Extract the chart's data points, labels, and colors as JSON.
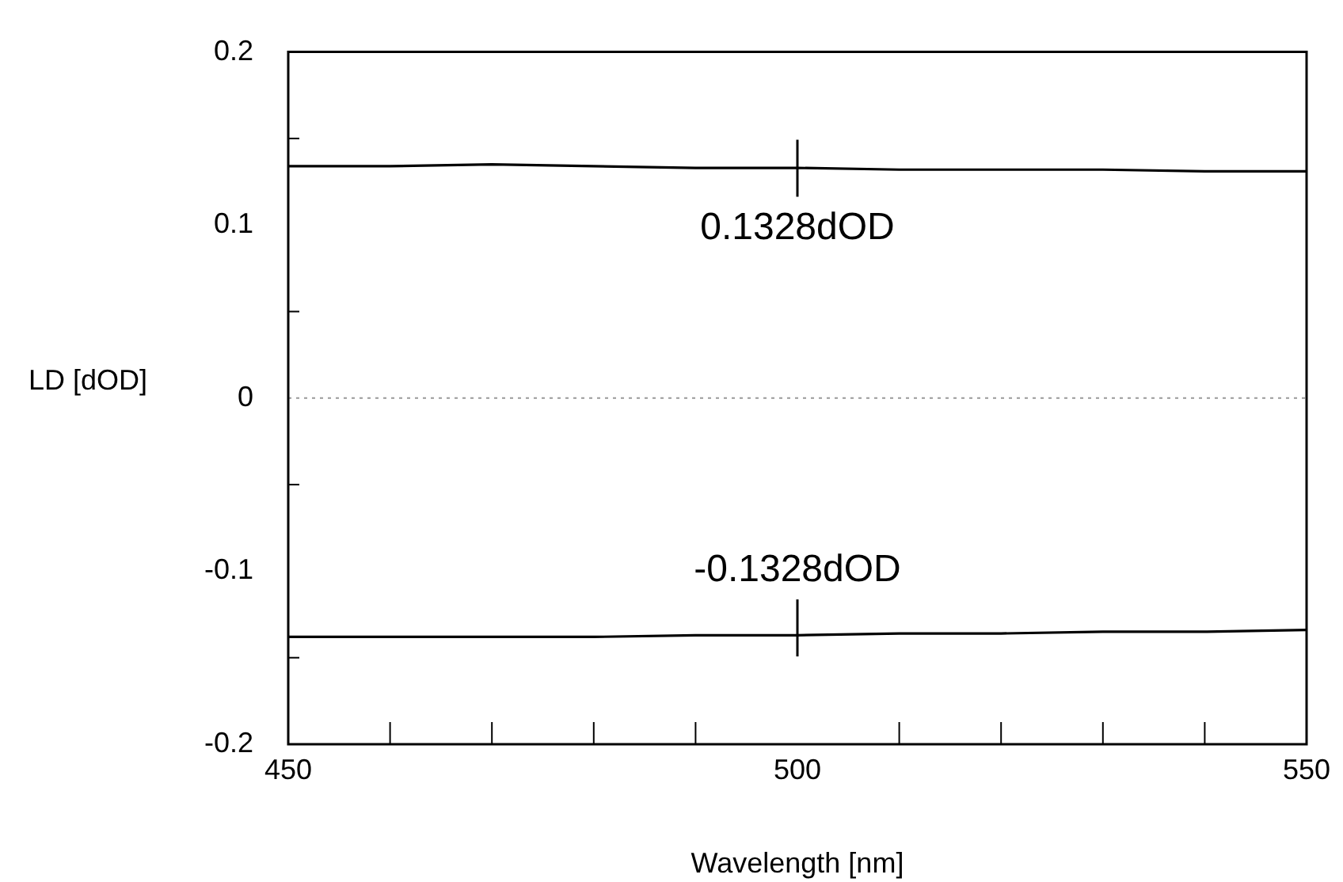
{
  "chart_data": {
    "type": "line",
    "xlabel": "Wavelength [nm]",
    "ylabel": "LD [dOD]",
    "x": [
      450,
      460,
      470,
      480,
      490,
      500,
      510,
      520,
      530,
      540,
      550
    ],
    "series": [
      {
        "color": "#000000",
        "values": [
          0.134,
          0.134,
          0.135,
          0.134,
          0.133,
          0.133,
          0.132,
          0.132,
          0.132,
          0.131,
          0.131
        ]
      },
      {
        "color": "#000000",
        "values": [
          -0.138,
          -0.138,
          -0.138,
          -0.138,
          -0.137,
          -0.137,
          -0.136,
          -0.136,
          -0.135,
          -0.135,
          -0.134
        ]
      }
    ],
    "xlim": [
      450,
      550
    ],
    "xticks": [
      450,
      {
        "value": 460,
        "label": null
      },
      {
        "value": 470,
        "label": null
      },
      {
        "value": 480,
        "label": null
      },
      {
        "value": 490,
        "label": null
      },
      500,
      {
        "value": 510,
        "label": null
      },
      {
        "value": 520,
        "label": null
      },
      {
        "value": 530,
        "label": null
      },
      {
        "value": 540,
        "label": null
      },
      550
    ],
    "ylim": [
      -0.2,
      0.2
    ],
    "yticks": [
      -0.2,
      {
        "value": -0.15,
        "label": null
      },
      -0.1,
      {
        "value": -0.05,
        "label": null
      },
      0,
      {
        "value": 0.05,
        "label": null
      },
      0.1,
      {
        "value": 0.15,
        "label": null
      },
      0.2
    ],
    "ref_lines": [
      {
        "axis": "y",
        "value": 0,
        "color": "#999999",
        "line_style": "dotted"
      }
    ],
    "annotations": [
      {
        "text": "0.1328dOD",
        "x": 500,
        "y": 0.1328
      },
      {
        "text": "-0.1328dOD",
        "x": 500,
        "y": -0.1328
      }
    ],
    "grid": false,
    "legend": false,
    "marker": "none",
    "line_style": "solid"
  }
}
